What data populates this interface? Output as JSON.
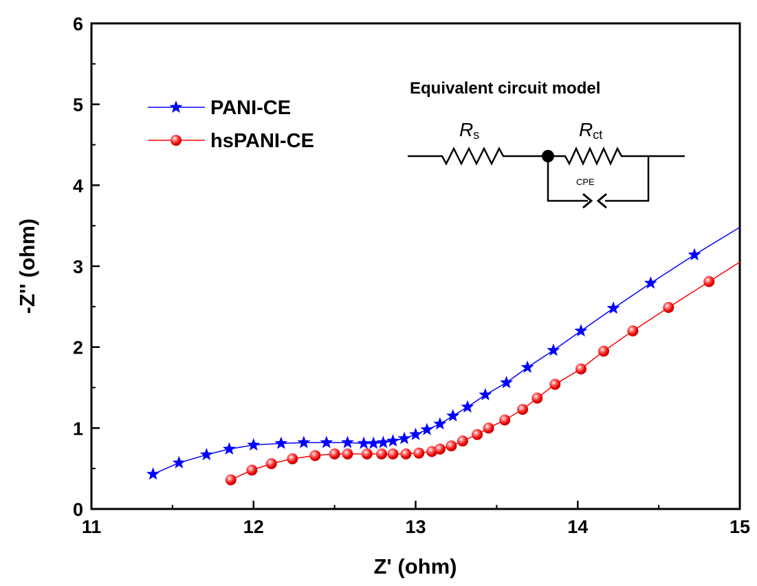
{
  "chart_data": {
    "type": "scatter",
    "xlabel": "Z' (ohm)",
    "ylabel": "-Z'' (ohm)",
    "xlim": [
      11,
      15
    ],
    "ylim": [
      0,
      6
    ],
    "x_ticks": [
      11,
      12,
      13,
      14,
      15
    ],
    "y_ticks": [
      0,
      1,
      2,
      3,
      4,
      5,
      6
    ],
    "grid": false,
    "legend_position": "top-left",
    "series": [
      {
        "name": "PANI-CE",
        "color": "#0000ff",
        "marker": "star",
        "x": [
          11.38,
          11.54,
          11.71,
          11.85,
          12.0,
          12.17,
          12.31,
          12.45,
          12.58,
          12.68,
          12.74,
          12.8,
          12.86,
          12.93,
          13.0,
          13.07,
          13.15,
          13.23,
          13.32,
          13.43,
          13.56,
          13.69,
          13.85,
          14.02,
          14.22,
          14.45,
          14.72
        ],
        "y": [
          0.43,
          0.57,
          0.67,
          0.74,
          0.79,
          0.81,
          0.82,
          0.82,
          0.82,
          0.81,
          0.81,
          0.82,
          0.84,
          0.87,
          0.92,
          0.98,
          1.05,
          1.15,
          1.26,
          1.41,
          1.56,
          1.75,
          1.96,
          2.2,
          2.48,
          2.79,
          3.14
        ],
        "line_end": [
          15.0,
          3.48
        ]
      },
      {
        "name": "hsPANI-CE",
        "color": "#ff0000",
        "marker": "circle",
        "x": [
          11.86,
          11.99,
          12.11,
          12.24,
          12.38,
          12.5,
          12.58,
          12.7,
          12.79,
          12.86,
          12.94,
          13.02,
          13.1,
          13.15,
          13.22,
          13.29,
          13.38,
          13.45,
          13.55,
          13.66,
          13.75,
          13.86,
          14.02,
          14.16,
          14.34,
          14.56,
          14.81
        ],
        "y": [
          0.36,
          0.48,
          0.56,
          0.62,
          0.66,
          0.68,
          0.68,
          0.68,
          0.68,
          0.68,
          0.68,
          0.69,
          0.71,
          0.74,
          0.78,
          0.84,
          0.92,
          1.0,
          1.1,
          1.23,
          1.37,
          1.54,
          1.73,
          1.95,
          2.2,
          2.49,
          2.81
        ],
        "line_end": [
          15.0,
          3.05
        ]
      }
    ],
    "inset": {
      "title": "Equivalent circuit model",
      "rs_main": "R",
      "rs_sub": "s",
      "rct_main": "R",
      "rct_sub": "ct",
      "cpe_label": "CPE"
    }
  }
}
